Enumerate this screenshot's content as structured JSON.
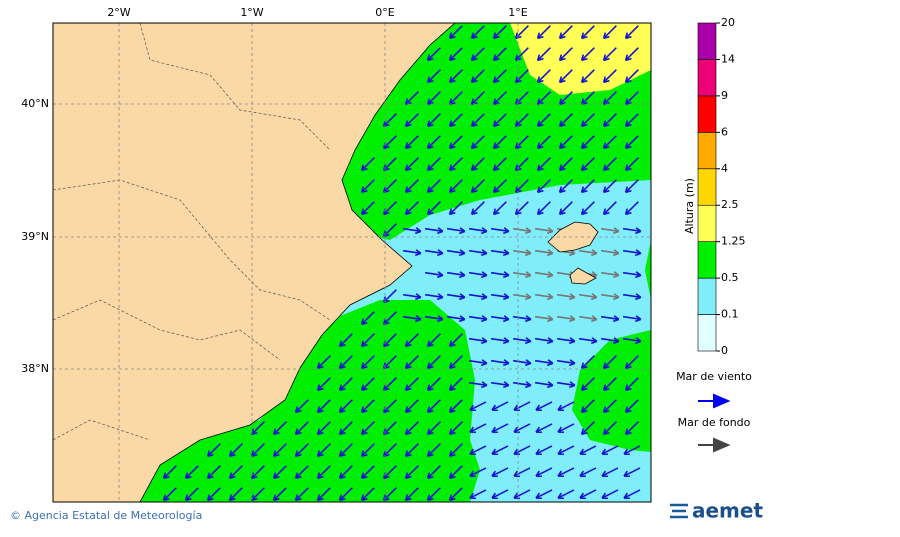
{
  "map": {
    "lon_labels": [
      "2°W",
      "1°W",
      "0°E",
      "1°E"
    ],
    "lat_labels": [
      "40°N",
      "39°N",
      "38°N"
    ]
  },
  "legend": {
    "title": "Altura (m)",
    "levels": [
      {
        "value": 0,
        "color": "#e0ffff"
      },
      {
        "value": 0.1,
        "color": "#80eefa"
      },
      {
        "value": 0.5,
        "color": "#00ee00"
      },
      {
        "value": 1.25,
        "color": "#ffff55"
      },
      {
        "value": 2.5,
        "color": "#ffd700"
      },
      {
        "value": 4,
        "color": "#ffaa00"
      },
      {
        "value": 6,
        "color": "#ff0000"
      },
      {
        "value": 9,
        "color": "#ee0077"
      },
      {
        "value": 14,
        "color": "#aa00aa"
      },
      {
        "value": 20,
        "color": "#aa00aa"
      }
    ],
    "wind_sea": "Mar de viento",
    "swell": "Mar de fondo"
  },
  "footer": {
    "credit": "© Agencia Estatal de Meteorología",
    "logo": "aemet"
  }
}
